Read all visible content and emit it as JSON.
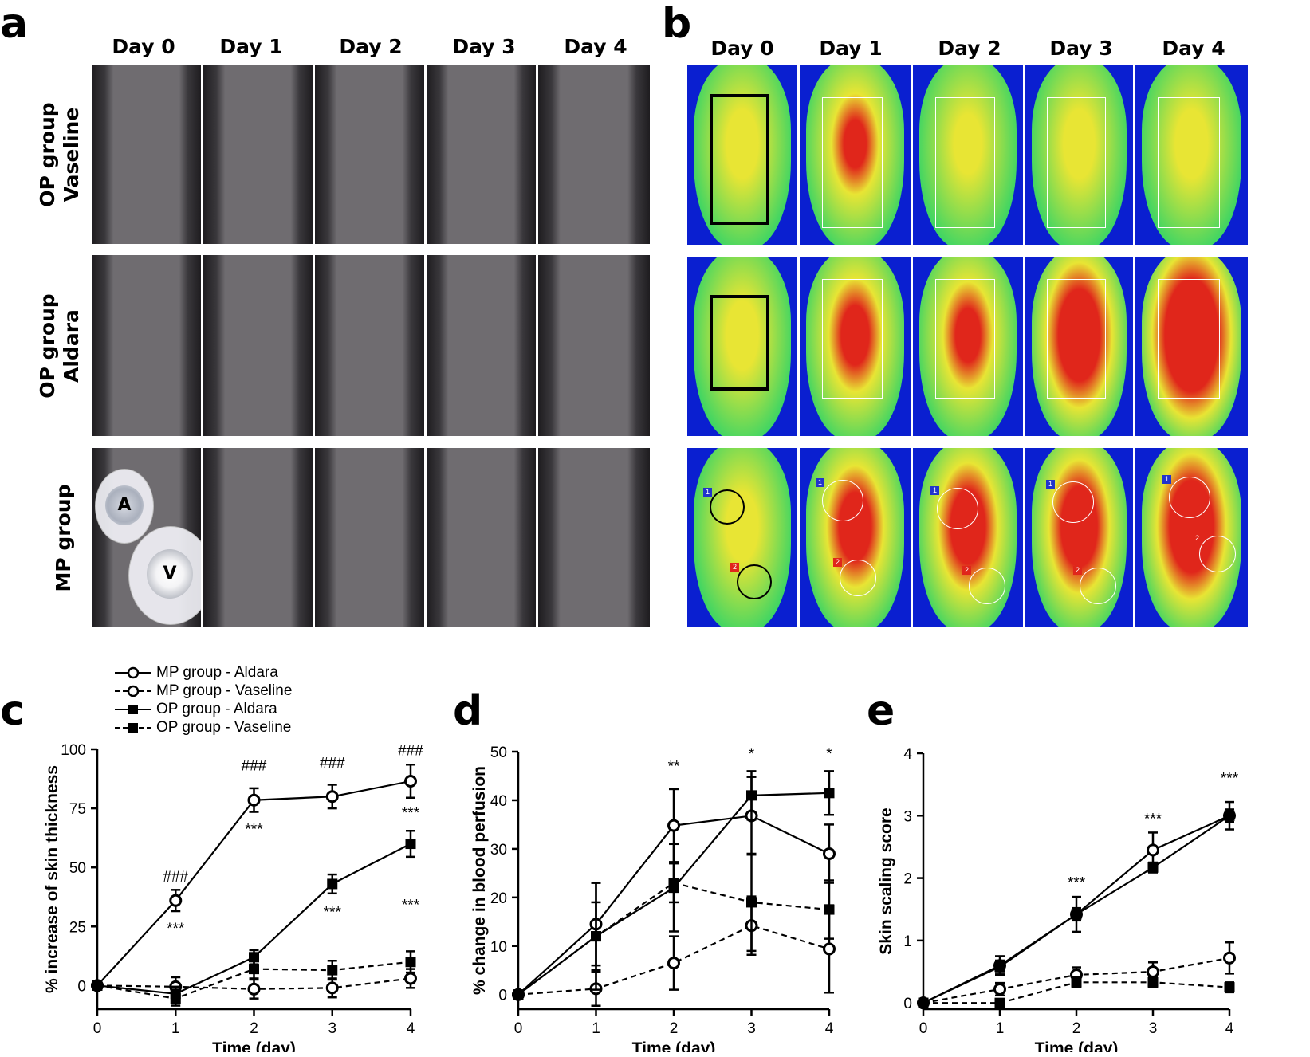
{
  "figure": {
    "panel_labels": {
      "a": "a",
      "b": "b",
      "c": "c",
      "d": "d",
      "e": "e"
    },
    "days": [
      "Day 0",
      "Day 1",
      "Day 2",
      "Day 3",
      "Day 4"
    ],
    "row_labels": {
      "op_vaseline": [
        "OP group",
        "Vaseline"
      ],
      "op_aldara": [
        "OP group",
        "Aldara"
      ],
      "mp": [
        "MP group"
      ]
    },
    "mp_patch_labels": {
      "aldara": "A",
      "vaseline": "V"
    },
    "roi_tags": [
      "1",
      "2"
    ],
    "colors": {
      "skin_normal": "#e2c9d0",
      "skin_red": "#d4999d",
      "fur": "#1e1c1f",
      "heat_low": "#0a1fd0",
      "heat_mid": "#27d36a",
      "heat_high": "#e8e534",
      "heat_peak": "#e0261b"
    }
  },
  "legend": {
    "entries": [
      {
        "label": "MP group - Aldara",
        "marker": "open-circle",
        "line": "solid"
      },
      {
        "label": "MP group - Vaseline",
        "marker": "open-circle",
        "line": "dashed"
      },
      {
        "label": "OP group - Aldara",
        "marker": "filled-square",
        "line": "solid"
      },
      {
        "label": "OP group - Vaseline",
        "marker": "filled-square",
        "line": "dashed"
      }
    ]
  },
  "chart_data": [
    {
      "id": "c",
      "type": "line",
      "title": "",
      "xlabel": "Time (day)",
      "ylabel": "% increase of skin thickness",
      "x": [
        0,
        1,
        2,
        3,
        4
      ],
      "xticks": [
        "0",
        "1",
        "2",
        "3",
        "4"
      ],
      "yticks": [
        0,
        25,
        50,
        75,
        100
      ],
      "ylim": [
        -10,
        100
      ],
      "series": [
        {
          "name": "MP group - Aldara",
          "values": [
            0,
            36,
            78.5,
            80,
            86.5
          ],
          "err": [
            0,
            4.5,
            5,
            5,
            7
          ]
        },
        {
          "name": "MP group - Vaseline",
          "values": [
            0,
            -0.5,
            -1.5,
            -1,
            3
          ],
          "err": [
            0,
            4,
            4,
            4,
            4
          ]
        },
        {
          "name": "OP group - Aldara",
          "values": [
            0,
            -3.5,
            12,
            43,
            60
          ],
          "err": [
            0,
            3,
            3,
            4,
            5.5
          ]
        },
        {
          "name": "OP group - Vaseline",
          "values": [
            0,
            -5.5,
            7,
            6.5,
            10
          ],
          "err": [
            0,
            3,
            4,
            4,
            4.5
          ]
        }
      ],
      "annotations": [
        {
          "text": "###",
          "x": 1,
          "y": 44
        },
        {
          "text": "***",
          "x": 1,
          "y": 22
        },
        {
          "text": "###",
          "x": 2,
          "y": 91
        },
        {
          "text": "***",
          "x": 2,
          "y": 64
        },
        {
          "text": "###",
          "x": 3,
          "y": 92
        },
        {
          "text": "***",
          "x": 3,
          "y": 29
        },
        {
          "text": "###",
          "x": 4,
          "y": 97.5
        },
        {
          "text": "***",
          "x": 4,
          "y": 71
        },
        {
          "text": "***",
          "x": 4,
          "y": 32
        }
      ]
    },
    {
      "id": "d",
      "type": "line",
      "title": "",
      "xlabel": "Time (day)",
      "ylabel": "% change in blood perfusion",
      "x": [
        0,
        1,
        2,
        3,
        4
      ],
      "xticks": [
        "0",
        "1",
        "2",
        "3",
        "4"
      ],
      "yticks": [
        0,
        10,
        20,
        30,
        40,
        50
      ],
      "ylim": [
        -3,
        50
      ],
      "series": [
        {
          "name": "MP group - Aldara",
          "values": [
            0,
            14.5,
            34.8,
            36.8,
            29
          ],
          "err": [
            0,
            8.5,
            7.5,
            8,
            6
          ]
        },
        {
          "name": "MP group - Vaseline",
          "values": [
            0,
            1.2,
            6.5,
            14.2,
            9.4
          ],
          "err": [
            0,
            3.5,
            5.5,
            6,
            9
          ]
        },
        {
          "name": "OP group - Aldara",
          "values": [
            0,
            12,
            22,
            41,
            41.5
          ],
          "err": [
            0,
            11,
            9,
            5,
            4.5
          ]
        },
        {
          "name": "OP group - Vaseline",
          "values": [
            0,
            12,
            23,
            19,
            17.5
          ],
          "err": [
            0,
            7,
            4,
            10,
            6
          ]
        }
      ],
      "annotations": [
        {
          "text": "**",
          "x": 2,
          "y": 46
        },
        {
          "text": "*",
          "x": 3,
          "y": 48.5
        },
        {
          "text": "*",
          "x": 4,
          "y": 48.5
        }
      ]
    },
    {
      "id": "e",
      "type": "line",
      "title": "",
      "xlabel": "Time (day)",
      "ylabel": "Skin scaling score",
      "x": [
        0,
        1,
        2,
        3,
        4
      ],
      "xticks": [
        "0",
        "1",
        "2",
        "3",
        "4"
      ],
      "yticks": [
        0,
        1,
        2,
        3,
        4
      ],
      "ylim": [
        -0.1,
        4
      ],
      "series": [
        {
          "name": "MP group - Aldara",
          "values": [
            0,
            0.6,
            1.42,
            2.45,
            3
          ],
          "err": [
            0,
            0.15,
            0.28,
            0.28,
            0.22
          ]
        },
        {
          "name": "MP group - Vaseline",
          "values": [
            0,
            0.22,
            0.45,
            0.5,
            0.72
          ],
          "err": [
            0,
            0.1,
            0.12,
            0.15,
            0.25
          ]
        },
        {
          "name": "OP group - Aldara",
          "values": [
            0,
            0.58,
            1.42,
            2.17,
            3
          ],
          "err": [
            0,
            0.1,
            0.1,
            0.08,
            0.1
          ]
        },
        {
          "name": "OP group - Vaseline",
          "values": [
            0,
            0,
            0.33,
            0.33,
            0.25
          ],
          "err": [
            0,
            0,
            0.08,
            0.08,
            0.08
          ]
        }
      ],
      "annotations": [
        {
          "text": "***",
          "x": 2,
          "y": 1.85
        },
        {
          "text": "***",
          "x": 3,
          "y": 2.87
        },
        {
          "text": "***",
          "x": 4,
          "y": 3.52
        }
      ]
    }
  ]
}
